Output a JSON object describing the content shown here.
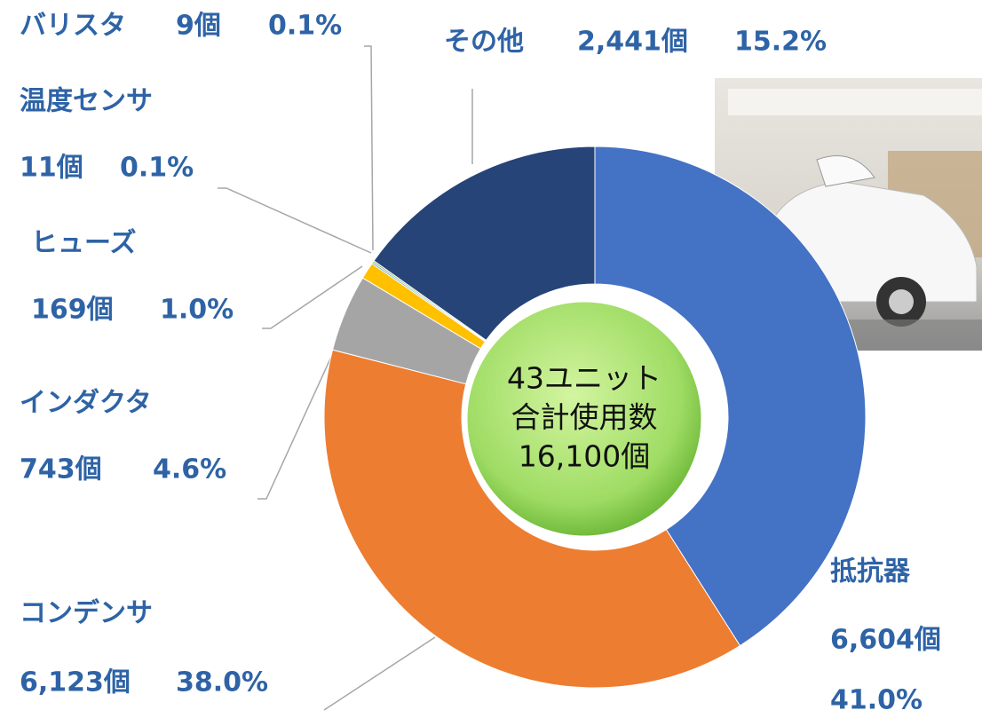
{
  "chart_data": {
    "type": "pie",
    "categories": [
      "抵抗器",
      "コンデンサ",
      "インダクタ",
      "ヒューズ",
      "温度センサ",
      "バリスタ",
      "その他"
    ],
    "values": [
      41.0,
      38.0,
      4.6,
      1.0,
      0.1,
      0.1,
      15.2
    ],
    "value_labels": [
      "41.0%",
      "38.0%",
      "4.6%",
      "1.0%",
      "0.1%",
      "0.1%",
      "15.2%"
    ],
    "counts": [
      6604,
      6123,
      743,
      169,
      11,
      9,
      2441
    ],
    "count_labels": [
      "6,604個",
      "6,123個",
      "743個",
      "169個",
      "11個",
      "9個",
      "2,441個"
    ],
    "colors": [
      "#4472c4",
      "#ed7d31",
      "#a5a5a5",
      "#ffc000",
      "#5b9bd5",
      "#70ad47",
      "#264478"
    ],
    "center_text": [
      "43ユニット",
      "合計使用数",
      "16,100個"
    ]
  }
}
